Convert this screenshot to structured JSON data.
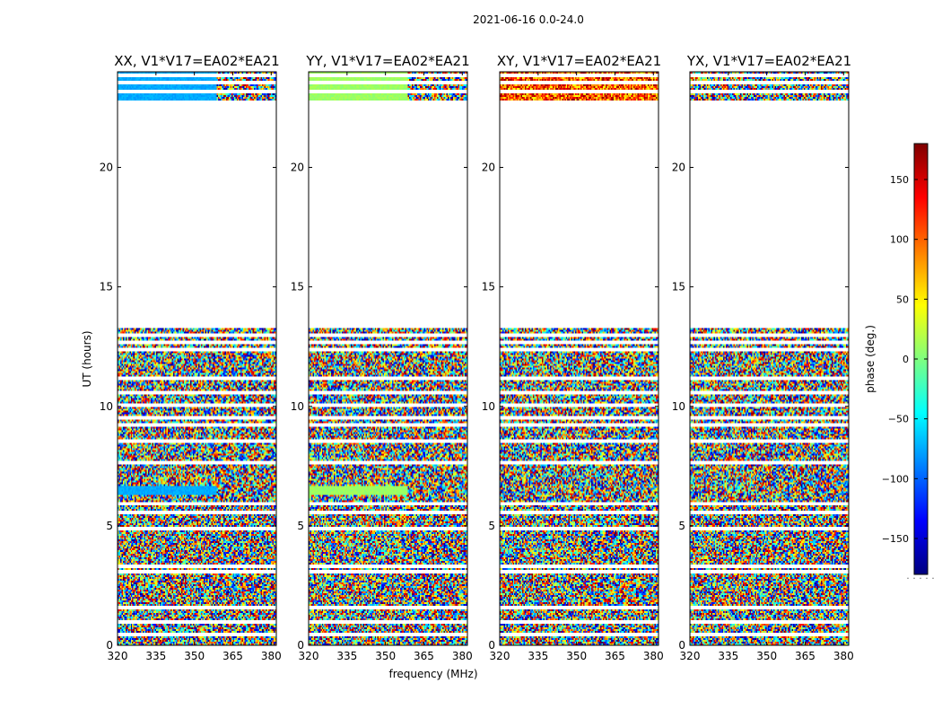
{
  "figure": {
    "suptitle": "2021-06-16 0.0-24.0",
    "xlabel": "frequency (MHz)",
    "ylabel": "UT (hours)",
    "colorbar_label": "phase (deg.)",
    "colorbar_extra": "· · · · ·"
  },
  "chart_data": {
    "type": "heatmap",
    "colormap": "jet",
    "colormap_stops": [
      "#00007f",
      "#0000ff",
      "#007fff",
      "#00ffff",
      "#7fff7f",
      "#ffff00",
      "#ff7f00",
      "#ff0000",
      "#7f0000"
    ],
    "x_ticks": [
      320,
      335,
      350,
      365,
      380
    ],
    "y_ticks": [
      0,
      5,
      10,
      15,
      20
    ],
    "xlim": [
      320,
      382
    ],
    "ylim": [
      0,
      24
    ],
    "clim": [
      -180,
      180
    ],
    "colorbar_ticks": [
      150,
      100,
      50,
      0,
      -50,
      -100,
      -150
    ],
    "colorbar_tick_labels": [
      "150",
      "100",
      "50",
      "0",
      "−50",
      "−100",
      "−150"
    ],
    "data_time_ranges_hours": [
      [
        0.0,
        13.3
      ],
      [
        22.8,
        24.0
      ]
    ],
    "flagged_time_rows_hours": [
      0.45,
      1.0,
      1.55,
      3.1,
      3.3,
      4.9,
      5.55,
      5.95,
      7.65,
      8.55,
      9.25,
      9.55,
      10.05,
      10.6,
      11.15,
      12.35,
      12.65,
      13.0,
      23.2,
      23.55,
      23.85
    ],
    "panels": [
      {
        "title": "XX, V1*V17=EA02*EA21",
        "smooth_rows_hours": [
          [
            6.3,
            6.7
          ],
          [
            22.8,
            24.0
          ]
        ],
        "smooth_value_deg": -75
      },
      {
        "title": "YY, V1*V17=EA02*EA21",
        "smooth_rows_hours": [
          [
            6.3,
            6.7
          ],
          [
            22.8,
            24.0
          ]
        ],
        "smooth_value_deg": 10
      },
      {
        "title": "XY, V1*V17=EA02*EA21",
        "smooth_rows_hours": [],
        "smooth_value_deg": 80
      },
      {
        "title": "YX, V1*V17=EA02*EA21",
        "smooth_rows_hours": [],
        "smooth_value_deg": -10
      }
    ]
  }
}
